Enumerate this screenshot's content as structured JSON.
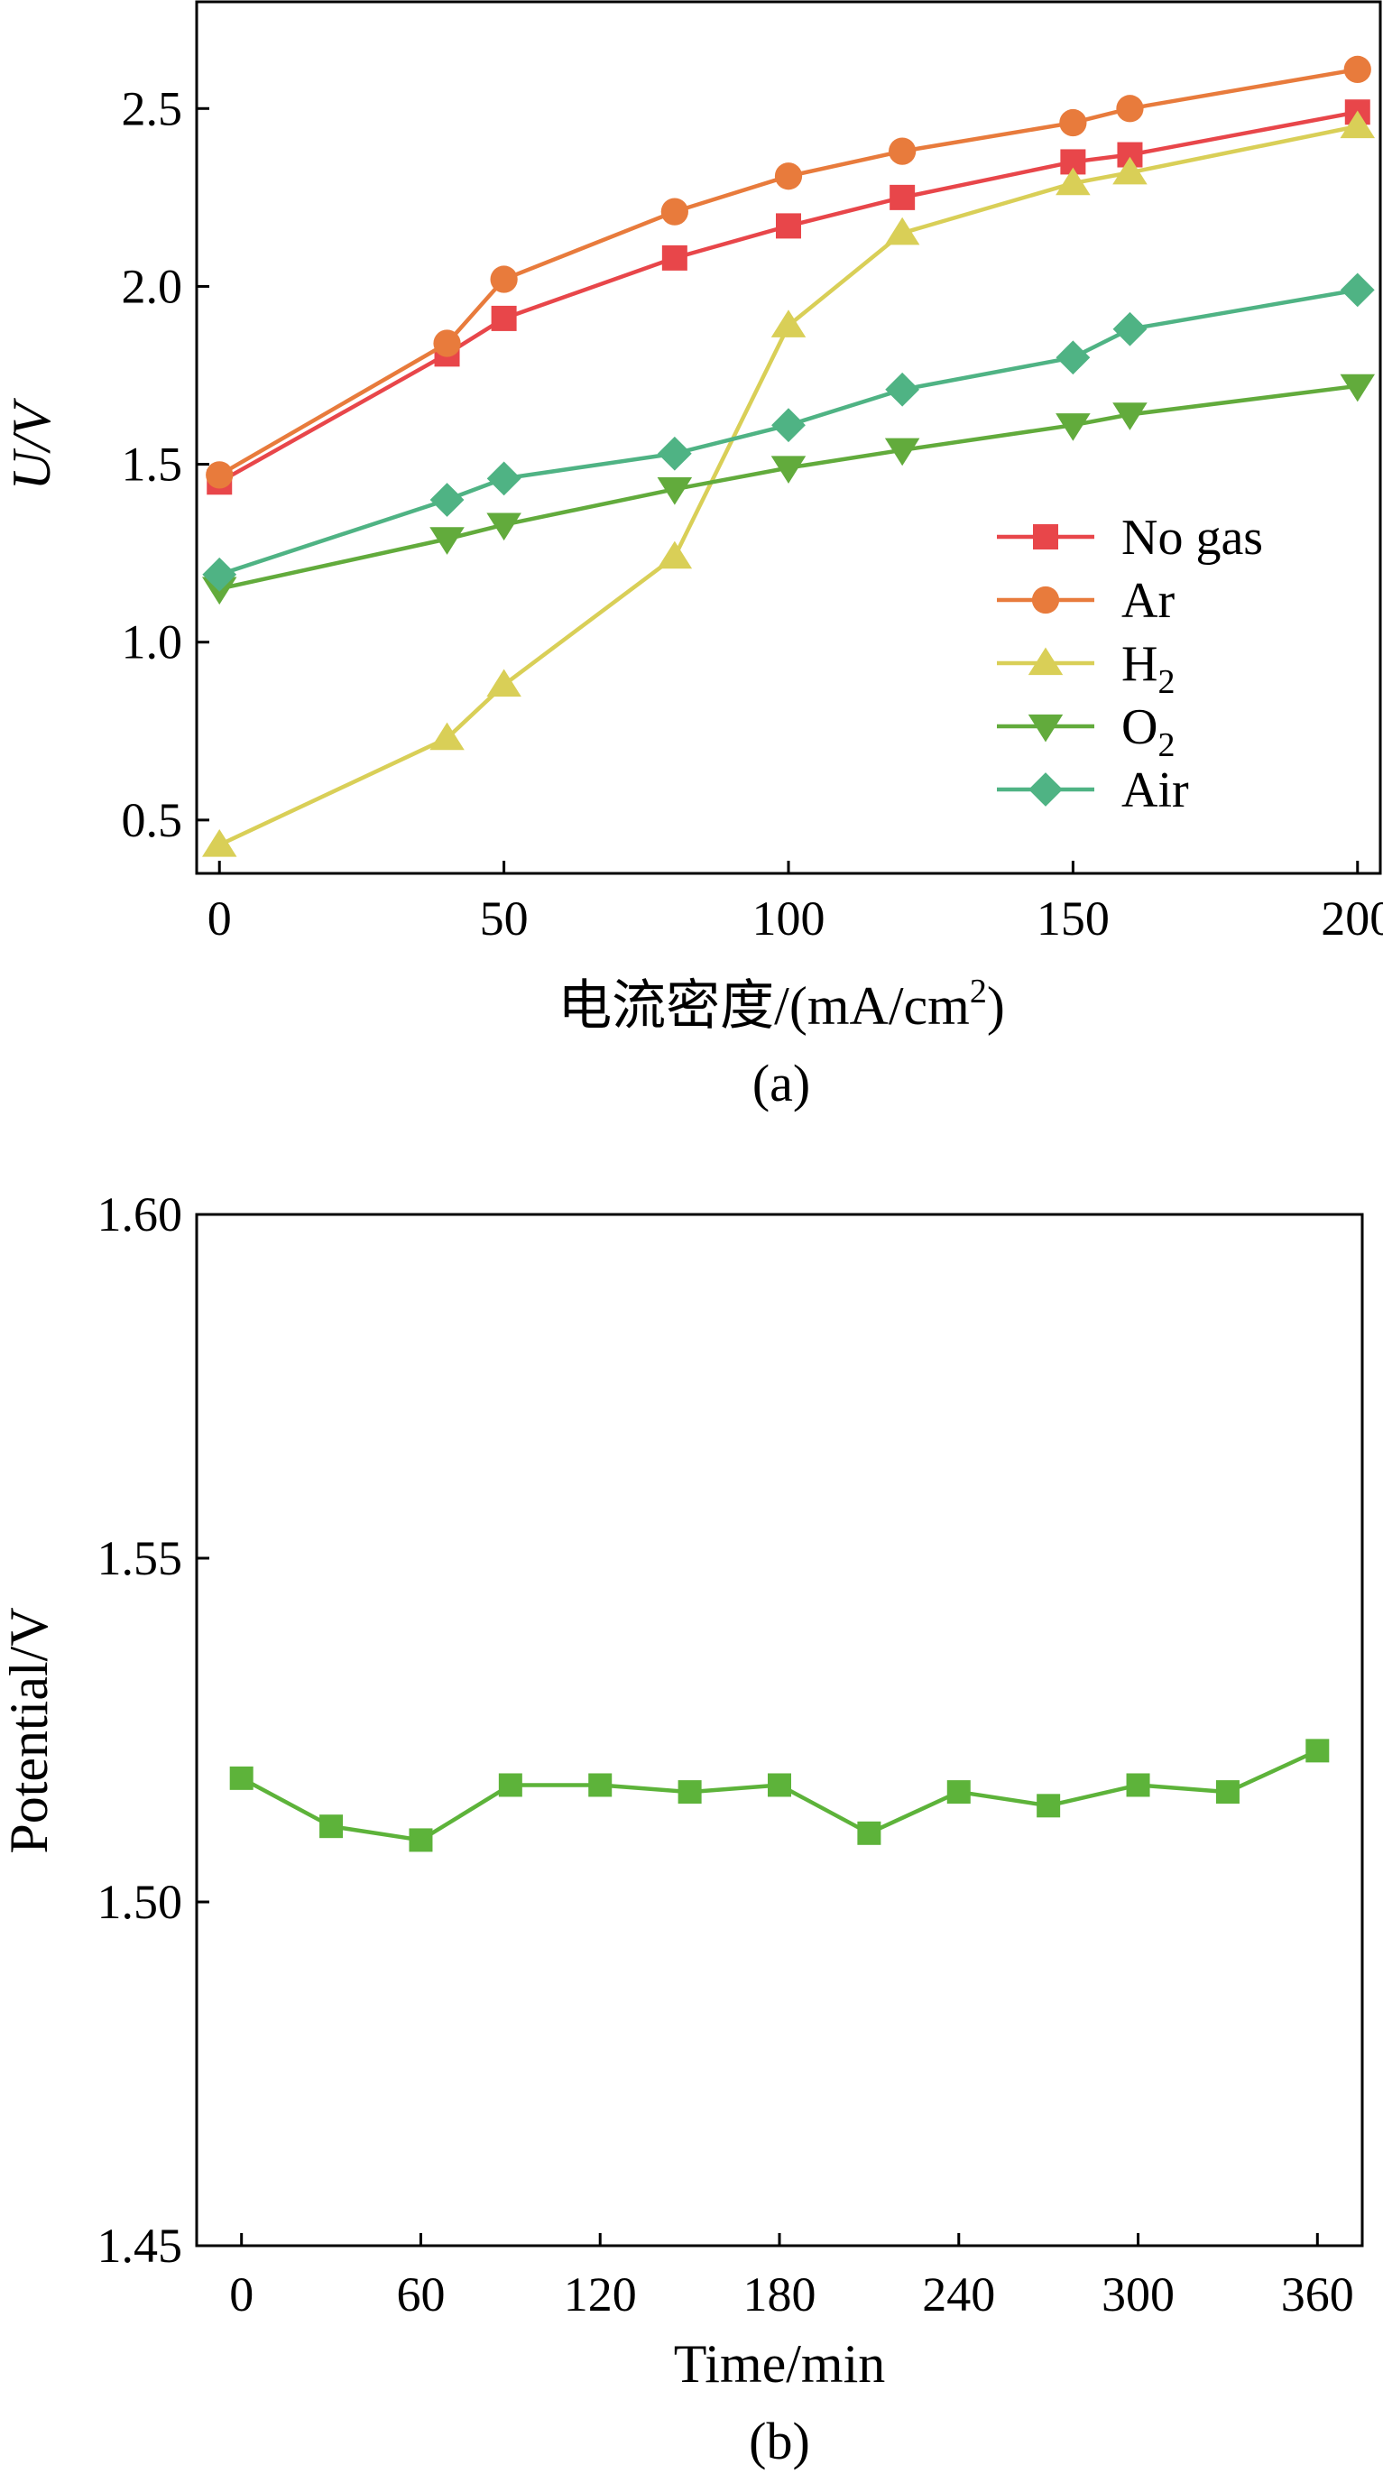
{
  "chart_data": [
    {
      "type": "line",
      "caption": "(a)",
      "xlabel": "电流密度/(mA/cm²)",
      "xlabel_main": "电流密度/(mA/cm",
      "xlabel_sup": "2",
      "xlabel_tail": ")",
      "ylabel": "U/V",
      "xlim": [
        -4,
        204
      ],
      "ylim": [
        0.35,
        2.8
      ],
      "xticks": [
        0,
        50,
        100,
        150,
        200
      ],
      "yticks": [
        0.5,
        1.0,
        1.5,
        2.0,
        2.5
      ],
      "xtick_labels": [
        "0",
        "50",
        "100",
        "150",
        "200"
      ],
      "ytick_labels": [
        "0.5",
        "1.0",
        "1.5",
        "2.0",
        "2.5"
      ],
      "legend_position": "lower-right",
      "x": [
        0,
        40,
        50,
        80,
        100,
        120,
        150,
        160,
        200
      ],
      "series": [
        {
          "name": "No gas",
          "label_main": "No gas",
          "label_sub": "",
          "marker": "square",
          "color": "#e8464a",
          "values": [
            1.45,
            1.81,
            1.91,
            2.08,
            2.17,
            2.25,
            2.35,
            2.37,
            2.49
          ]
        },
        {
          "name": "Ar",
          "label_main": "Ar",
          "label_sub": "",
          "marker": "circle",
          "color": "#e87b3c",
          "values": [
            1.47,
            1.84,
            2.02,
            2.21,
            2.31,
            2.38,
            2.46,
            2.5,
            2.61
          ]
        },
        {
          "name": "H2",
          "label_main": "H",
          "label_sub": "2",
          "marker": "triangle-up",
          "color": "#d9cf57",
          "values": [
            0.43,
            0.73,
            0.88,
            1.24,
            1.89,
            2.15,
            2.29,
            2.32,
            2.45
          ]
        },
        {
          "name": "O2",
          "label_main": "O",
          "label_sub": "2",
          "marker": "triangle-down",
          "color": "#62ab3c",
          "values": [
            1.15,
            1.29,
            1.33,
            1.43,
            1.49,
            1.54,
            1.61,
            1.64,
            1.72
          ]
        },
        {
          "name": "Air",
          "label_main": "Air",
          "label_sub": "",
          "marker": "diamond",
          "color": "#4fb384",
          "values": [
            1.19,
            1.4,
            1.46,
            1.53,
            1.61,
            1.71,
            1.8,
            1.88,
            1.99
          ]
        }
      ]
    },
    {
      "type": "line",
      "caption": "(b)",
      "xlabel": "Time/min",
      "ylabel": "Potential/V",
      "xlim": [
        -15,
        375
      ],
      "ylim": [
        1.45,
        1.6
      ],
      "xticks": [
        0,
        60,
        120,
        180,
        240,
        300,
        360
      ],
      "yticks": [
        1.45,
        1.5,
        1.55,
        1.6
      ],
      "xtick_labels": [
        "0",
        "60",
        "120",
        "180",
        "240",
        "300",
        "360"
      ],
      "ytick_labels": [
        "1.45",
        "1.50",
        "1.55",
        "1.60"
      ],
      "series": [
        {
          "name": "Potential",
          "marker": "square",
          "color": "#5db33a",
          "x": [
            0,
            30,
            60,
            90,
            120,
            150,
            180,
            210,
            240,
            270,
            300,
            330,
            360
          ],
          "values": [
            1.518,
            1.511,
            1.509,
            1.517,
            1.517,
            1.516,
            1.517,
            1.51,
            1.516,
            1.514,
            1.517,
            1.516,
            1.522
          ]
        }
      ]
    }
  ]
}
